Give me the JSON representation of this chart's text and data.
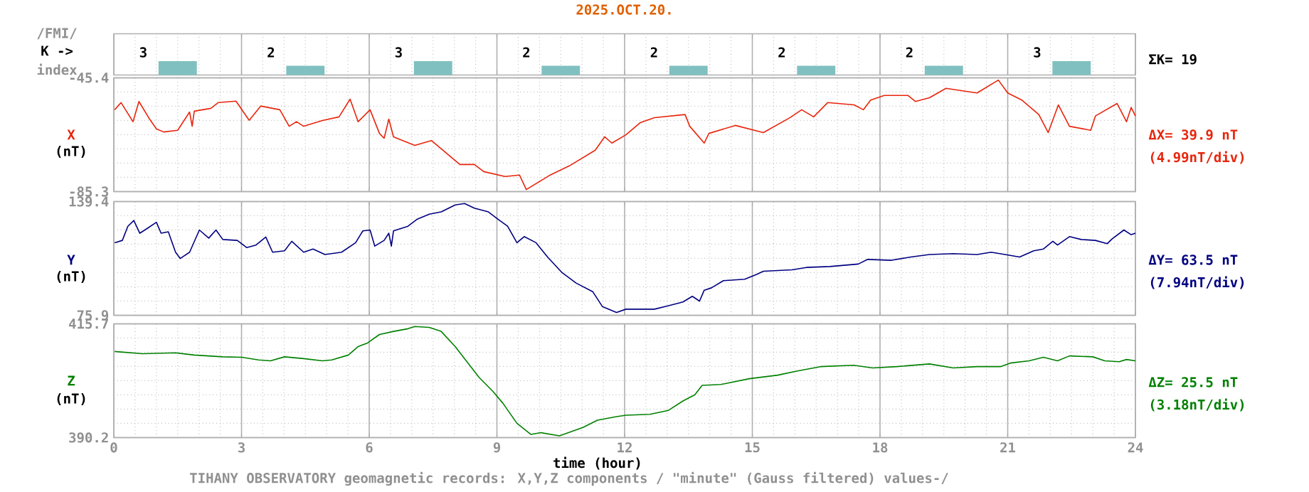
{
  "chart_data": [
    {
      "type": "bar",
      "title": "2025.OCT.20.",
      "ylabel": "K ->",
      "x": [
        1.5,
        4.5,
        7.5,
        10.5,
        13.5,
        16.5,
        19.5,
        22.5
      ],
      "values": [
        3,
        2,
        3,
        2,
        2,
        2,
        2,
        3
      ],
      "color": "#80c0c0",
      "data_labels": true,
      "xlim": [
        0,
        24
      ],
      "xticks": [
        0,
        3,
        6,
        9,
        12,
        15,
        18,
        21,
        24
      ],
      "grid": "x",
      "tick_labels": false,
      "annotations": [
        "/FMI/",
        "index",
        "ΣK= 19"
      ]
    },
    {
      "type": "line",
      "ylabel": "X",
      "color": "#e8250c",
      "xlim": [
        0,
        24
      ],
      "ylim": [
        -85.3,
        -45.4
      ],
      "xticks": [
        0,
        3,
        6,
        9,
        12,
        15,
        18,
        21,
        24
      ],
      "yticks": [
        -85.3,
        -45.4
      ],
      "grid": true,
      "tick_labels": "y",
      "annotations": [
        "(nT)",
        "ΔX= 39.9 nT",
        "(4.99nT/div)"
      ],
      "x": [
        0.02,
        0.17,
        0.45,
        0.59,
        0.84,
        1.0,
        1.17,
        1.5,
        1.78,
        1.84,
        1.89,
        2.28,
        2.45,
        2.87,
        3.18,
        3.45,
        3.9,
        4.12,
        4.29,
        4.46,
        4.9,
        5.29,
        5.55,
        5.74,
        6.02,
        6.24,
        6.35,
        6.46,
        6.57,
        7.07,
        7.46,
        8.13,
        8.47,
        8.69,
        9.19,
        9.53,
        9.69,
        10.25,
        10.7,
        11.31,
        11.53,
        11.7,
        12.03,
        12.37,
        12.7,
        13.42,
        13.53,
        13.87,
        13.98,
        14.6,
        15.26,
        15.88,
        16.16,
        16.44,
        16.77,
        17.39,
        17.61,
        17.78,
        18.1,
        18.66,
        18.83,
        19.16,
        19.55,
        20.28,
        20.78,
        21.0,
        21.33,
        21.73,
        21.95,
        22.19,
        22.45,
        22.95,
        23.06,
        23.57,
        23.79,
        23.9,
        24.0
      ],
      "values": [
        -56.6,
        -54.1,
        -60.8,
        -53.7,
        -59.9,
        -63.3,
        -64.4,
        -63.8,
        -57.4,
        -62.4,
        -57.1,
        -56.1,
        -54.1,
        -53.6,
        -60.3,
        -55.3,
        -56.6,
        -62.4,
        -60.8,
        -62.4,
        -60.4,
        -59.1,
        -52.9,
        -60.8,
        -56.6,
        -64.9,
        -66.6,
        -59.9,
        -66.1,
        -69.1,
        -67.4,
        -75.8,
        -75.8,
        -78.3,
        -80.0,
        -79.5,
        -84.6,
        -79.5,
        -76.3,
        -70.8,
        -66.1,
        -68.3,
        -65.4,
        -61.1,
        -59.4,
        -58.3,
        -62.4,
        -68.3,
        -64.9,
        -62.1,
        -64.6,
        -59.4,
        -56.6,
        -59.1,
        -54.1,
        -54.9,
        -56.6,
        -53.2,
        -51.6,
        -51.6,
        -53.7,
        -52.4,
        -49.1,
        -50.7,
        -46.2,
        -50.7,
        -53.2,
        -58.3,
        -64.6,
        -54.9,
        -62.4,
        -63.8,
        -58.8,
        -54.4,
        -60.8,
        -55.8,
        -58.8
      ]
    },
    {
      "type": "line",
      "ylabel": "Y",
      "color": "#000080",
      "xlim": [
        0,
        24
      ],
      "ylim": [
        75.9,
        139.4
      ],
      "xticks": [
        0,
        3,
        6,
        9,
        12,
        15,
        18,
        21,
        24
      ],
      "yticks": [
        75.9,
        139.4
      ],
      "grid": true,
      "tick_labels": "y",
      "annotations": [
        "(nT)",
        "ΔY= 63.5 nT",
        "(7.94nT/div)"
      ],
      "x": [
        0.02,
        0.2,
        0.33,
        0.47,
        0.61,
        0.78,
        1.0,
        1.11,
        1.28,
        1.45,
        1.56,
        1.78,
        2.01,
        2.23,
        2.4,
        2.56,
        2.9,
        3.12,
        3.34,
        3.57,
        3.73,
        4.01,
        4.18,
        4.46,
        4.68,
        4.96,
        5.35,
        5.68,
        5.85,
        6.02,
        6.13,
        6.35,
        6.46,
        6.52,
        6.57,
        6.91,
        7.13,
        7.41,
        7.69,
        8.02,
        8.24,
        8.47,
        8.8,
        9.02,
        9.25,
        9.47,
        9.64,
        9.92,
        10.19,
        10.53,
        10.86,
        11.25,
        11.48,
        11.81,
        12.03,
        12.7,
        13.03,
        13.37,
        13.59,
        13.76,
        13.87,
        14.04,
        14.32,
        14.82,
        15.1,
        15.26,
        15.93,
        16.27,
        16.82,
        17.49,
        17.71,
        18.27,
        18.72,
        19.16,
        19.72,
        20.28,
        20.61,
        20.94,
        21.28,
        21.61,
        21.84,
        22.06,
        22.17,
        22.45,
        22.73,
        23.06,
        23.34,
        23.45,
        23.73,
        23.9,
        24.0
      ],
      "values": [
        116.4,
        117.7,
        125.6,
        128.8,
        121.7,
        124.3,
        127.8,
        121.7,
        122.5,
        111.1,
        107.6,
        111.1,
        123.5,
        119.0,
        123.5,
        118.2,
        117.7,
        113.7,
        115.1,
        119.6,
        111.1,
        111.9,
        117.2,
        111.1,
        112.9,
        109.8,
        111.1,
        116.4,
        123.0,
        123.5,
        114.5,
        117.7,
        121.7,
        114.5,
        123.0,
        125.6,
        129.6,
        132.3,
        133.6,
        137.5,
        138.3,
        135.7,
        133.6,
        129.6,
        125.6,
        116.4,
        119.8,
        116.4,
        108.4,
        99.7,
        93.9,
        89.1,
        80.7,
        77.5,
        79.3,
        79.3,
        81.2,
        83.3,
        86.5,
        83.8,
        89.9,
        91.2,
        95.2,
        96.0,
        98.7,
        100.5,
        101.3,
        102.6,
        103.1,
        104.5,
        107.1,
        106.6,
        108.4,
        109.8,
        110.3,
        109.8,
        111.1,
        109.8,
        108.4,
        111.9,
        112.9,
        117.2,
        115.1,
        119.8,
        118.2,
        117.7,
        115.9,
        118.5,
        123.5,
        120.9,
        121.7
      ]
    },
    {
      "type": "line",
      "ylabel": "Z",
      "xlabel": "time (hour)",
      "color": "#008000",
      "xlim": [
        0,
        24
      ],
      "ylim": [
        390.2,
        415.7
      ],
      "xticks": [
        0,
        3,
        6,
        9,
        12,
        15,
        18,
        21,
        24
      ],
      "yticks": [
        390.2,
        415.7
      ],
      "grid": true,
      "annotations": [
        "(nT)",
        "ΔZ= 25.5 nT",
        "(3.18nT/div)",
        "TIHANY OBSERVATORY   geomagnetic records:  X,Y,Z  components   / \"minute\" (Gauss filtered) values-/"
      ],
      "x": [
        0.02,
        0.67,
        1.45,
        1.89,
        2.56,
        3.01,
        3.4,
        3.68,
        4.01,
        4.46,
        4.9,
        5.12,
        5.51,
        5.74,
        5.96,
        6.24,
        6.57,
        6.91,
        7.07,
        7.41,
        7.69,
        8.02,
        8.36,
        8.58,
        8.91,
        9.14,
        9.47,
        9.8,
        10.03,
        10.47,
        11.03,
        11.36,
        11.81,
        12.03,
        12.59,
        13.03,
        13.37,
        13.65,
        13.82,
        14.26,
        14.93,
        15.6,
        16.04,
        16.6,
        17.38,
        17.83,
        18.39,
        19.16,
        19.72,
        20.28,
        20.83,
        21.06,
        21.5,
        21.84,
        22.17,
        22.45,
        23.0,
        23.28,
        23.62,
        23.79,
        24.0
      ],
      "values": [
        409.5,
        409.0,
        409.2,
        408.7,
        408.3,
        408.2,
        407.6,
        407.4,
        408.3,
        407.9,
        407.4,
        407.6,
        408.7,
        410.6,
        411.4,
        413.3,
        414.0,
        414.6,
        415.1,
        414.9,
        414.0,
        410.6,
        406.4,
        403.7,
        400.5,
        397.9,
        393.4,
        390.9,
        391.3,
        390.6,
        392.5,
        394.1,
        394.9,
        395.2,
        395.4,
        396.3,
        398.4,
        399.8,
        401.9,
        402.1,
        403.4,
        404.2,
        405.1,
        406.1,
        406.4,
        405.8,
        406.1,
        406.7,
        405.8,
        406.1,
        406.1,
        406.9,
        407.4,
        408.2,
        407.4,
        408.5,
        408.3,
        407.4,
        407.2,
        407.7,
        407.4
      ]
    }
  ]
}
